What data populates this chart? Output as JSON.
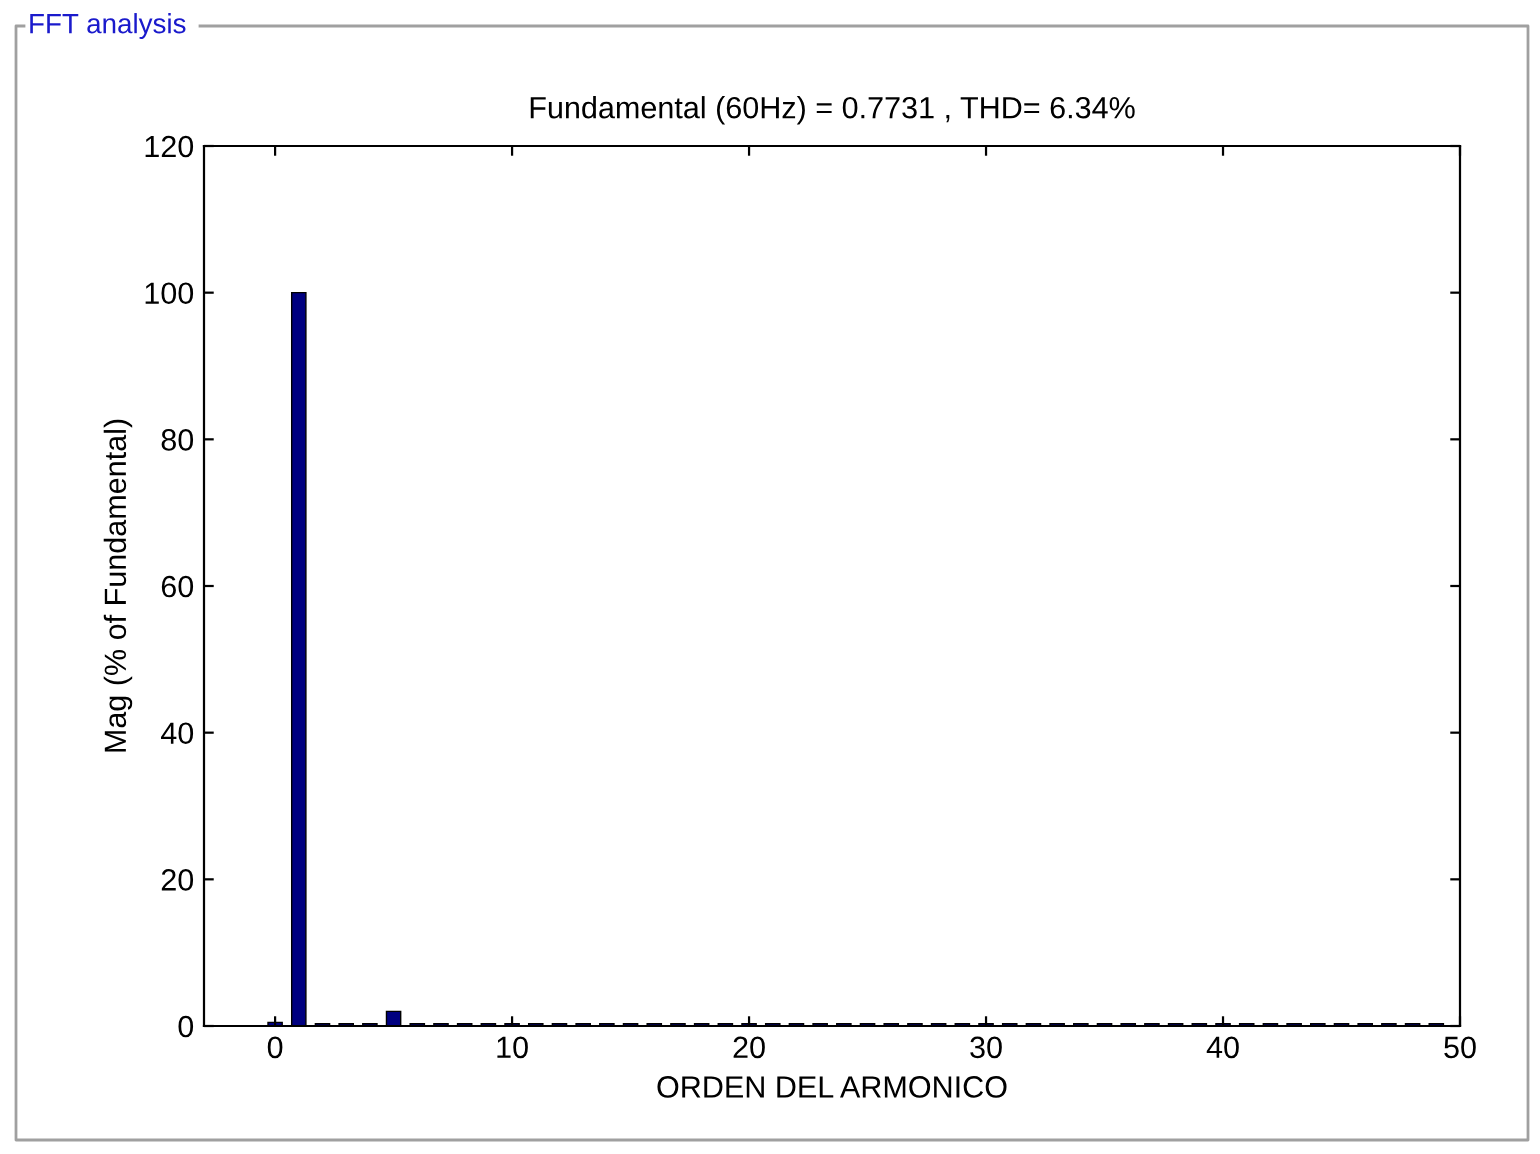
{
  "chart_data": {
    "type": "bar",
    "title": "FFT analysis",
    "subtitle": "Fundamental (60Hz) = 0.7731 , THD= 6.34%",
    "xlabel": "ORDEN DEL ARMONICO",
    "ylabel": "Mag (% of Fundamental)",
    "x": [
      0,
      1,
      2,
      3,
      4,
      5,
      6,
      7,
      8,
      9,
      10,
      11,
      12,
      13,
      14,
      15,
      16,
      17,
      18,
      19,
      20,
      21,
      22,
      23,
      24,
      25,
      26,
      27,
      28,
      29,
      30,
      31,
      32,
      33,
      34,
      35,
      36,
      37,
      38,
      39,
      40,
      41,
      42,
      43,
      44,
      45,
      46,
      47,
      48,
      49
    ],
    "series": [
      {
        "color": "#000080",
        "values": [
          0.5,
          100,
          0.3,
          0.3,
          0.3,
          2,
          0.3,
          0.3,
          0.3,
          0.3,
          0.3,
          0.3,
          0.3,
          0.3,
          0.3,
          0.3,
          0.3,
          0.3,
          0.3,
          0.3,
          0.3,
          0.3,
          0.3,
          0.3,
          0.3,
          0.3,
          0.3,
          0.3,
          0.3,
          0.3,
          0.3,
          0.3,
          0.3,
          0.3,
          0.3,
          0.3,
          0.3,
          0.3,
          0.3,
          0.3,
          0.3,
          0.3,
          0.3,
          0.3,
          0.3,
          0.3,
          0.3,
          0.3,
          0.3,
          0.3
        ]
      }
    ],
    "xlim": [
      -3,
      50
    ],
    "xticks": [
      0,
      10,
      20,
      30,
      40,
      50
    ],
    "ylim": [
      0,
      120
    ],
    "yticks": [
      0,
      20,
      40,
      60,
      80,
      100,
      120
    ],
    "grid": false,
    "legend": false
  }
}
